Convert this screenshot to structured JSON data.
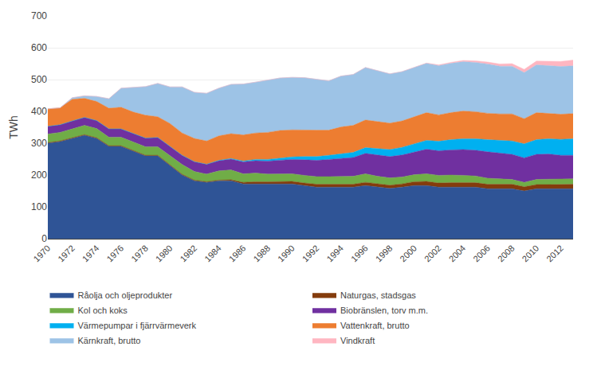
{
  "chart_data": {
    "type": "area",
    "stacked": true,
    "ylabel": "TWh",
    "x": [
      1970,
      1971,
      1972,
      1973,
      1974,
      1975,
      1976,
      1977,
      1978,
      1979,
      1980,
      1981,
      1982,
      1983,
      1984,
      1985,
      1986,
      1987,
      1988,
      1989,
      1990,
      1991,
      1992,
      1993,
      1994,
      1995,
      1996,
      1997,
      1998,
      1999,
      2000,
      2001,
      2002,
      2003,
      2004,
      2005,
      2006,
      2007,
      2008,
      2009,
      2010,
      2011,
      2012,
      2013
    ],
    "xlim": [
      1970,
      2013
    ],
    "xticks": [
      1970,
      1972,
      1974,
      1976,
      1978,
      1980,
      1982,
      1984,
      1986,
      1988,
      1990,
      1992,
      1994,
      1996,
      1998,
      2000,
      2002,
      2004,
      2006,
      2008,
      2010,
      2012
    ],
    "ylim": [
      0,
      700
    ],
    "yticks": [
      0,
      100,
      200,
      300,
      400,
      500,
      600,
      700
    ],
    "grid": "y",
    "legend": "bottom",
    "series": [
      {
        "name": "Råolja och oljeprodukter",
        "color": "#2F5496",
        "values": [
          300,
          305,
          315,
          325,
          315,
          290,
          290,
          275,
          260,
          260,
          230,
          200,
          182,
          177,
          182,
          182,
          172,
          172,
          172,
          172,
          172,
          167,
          162,
          162,
          162,
          162,
          167,
          162,
          158,
          162,
          167,
          167,
          162,
          162,
          162,
          162,
          157,
          157,
          157,
          150,
          157,
          157,
          157,
          157
        ]
      },
      {
        "name": "Naturgas, stadsgas",
        "color": "#843C0C",
        "values": [
          2,
          2,
          2,
          2,
          2,
          2,
          2,
          2,
          2,
          2,
          2,
          2,
          2,
          2,
          2,
          3,
          5,
          7,
          7,
          8,
          8,
          8,
          9,
          9,
          9,
          9,
          10,
          10,
          10,
          10,
          12,
          13,
          13,
          14,
          14,
          14,
          14,
          14,
          14,
          13,
          13,
          13,
          14,
          14
        ]
      },
      {
        "name": "Kol och koks",
        "color": "#70AD47",
        "values": [
          27,
          27,
          28,
          29,
          29,
          27,
          27,
          27,
          27,
          27,
          29,
          31,
          27,
          24,
          29,
          31,
          27,
          27,
          24,
          24,
          24,
          24,
          24,
          24,
          24,
          25,
          27,
          24,
          23,
          22,
          22,
          24,
          24,
          24,
          23,
          21,
          19,
          17,
          15,
          14,
          16,
          17,
          17,
          17
        ]
      },
      {
        "name": "Biobränslen, torv m.m.",
        "color": "#7030A0",
        "values": [
          24,
          24,
          25,
          25,
          25,
          26,
          26,
          27,
          27,
          29,
          29,
          29,
          31,
          31,
          32,
          34,
          37,
          39,
          41,
          43,
          45,
          49,
          51,
          54,
          57,
          59,
          64,
          67,
          67,
          69,
          71,
          77,
          77,
          79,
          81,
          81,
          83,
          81,
          79,
          77,
          79,
          79,
          74,
          74
        ]
      },
      {
        "name": "Värmepumpar i fjärrvärmeverk",
        "color": "#00B0F0",
        "values": [
          0,
          0,
          0,
          0,
          0,
          0,
          0,
          0,
          0,
          0,
          0,
          0,
          0,
          0,
          1,
          2,
          3,
          4,
          5,
          6,
          8,
          10,
          12,
          13,
          14,
          16,
          18,
          20,
          22,
          24,
          26,
          28,
          30,
          32,
          34,
          36,
          38,
          40,
          42,
          44,
          46,
          48,
          50,
          52
        ]
      },
      {
        "name": "Vattenkraft, brutto",
        "color": "#ED7D31",
        "values": [
          55,
          53,
          68,
          60,
          60,
          65,
          68,
          67,
          72,
          65,
          72,
          70,
          73,
          73,
          77,
          78,
          82,
          83,
          85,
          87,
          85,
          83,
          83,
          79,
          85,
          85,
          87,
          85,
          83,
          83,
          85,
          87,
          83,
          85,
          87,
          85,
          83,
          83,
          85,
          79,
          85,
          79,
          79,
          79
        ]
      },
      {
        "name": "Kärnkraft, brutto",
        "color": "#9DC3E6",
        "values": [
          0,
          0,
          5,
          8,
          16,
          30,
          60,
          78,
          90,
          105,
          115,
          145,
          145,
          150,
          150,
          155,
          160,
          160,
          165,
          165,
          165,
          165,
          160,
          155,
          160,
          160,
          165,
          160,
          155,
          155,
          155,
          155,
          155,
          155,
          155,
          155,
          155,
          150,
          150,
          145,
          150,
          150,
          150,
          150
        ]
      },
      {
        "name": "Vindkraft",
        "color": "#FFB6C1",
        "values": [
          0,
          0,
          0,
          0,
          0,
          0,
          0,
          0,
          0,
          0,
          0,
          0,
          0,
          0,
          0,
          0,
          0,
          0,
          0,
          0,
          0,
          0,
          0,
          0,
          0,
          0,
          0,
          0,
          0,
          0,
          0,
          1,
          2,
          3,
          4,
          5,
          6,
          7,
          8,
          10,
          12,
          14,
          16,
          18
        ]
      }
    ]
  }
}
